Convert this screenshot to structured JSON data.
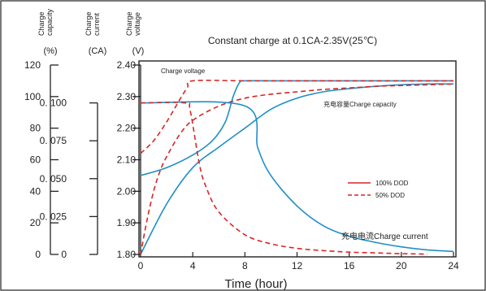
{
  "chart_data": {
    "type": "line",
    "title": "Constant charge at 0.1CA-2.35V(25℃)",
    "xlabel": "Time (hour)",
    "xlim": [
      0,
      24
    ],
    "x_ticks": [
      "0",
      "4",
      "8",
      "12",
      "16",
      "20",
      "24"
    ],
    "axes": [
      {
        "title": "Charge capacity",
        "unit": "(%)",
        "lim": [
          0,
          120
        ],
        "ticks": [
          "0",
          "20",
          "40",
          "60",
          "80",
          "100",
          "120"
        ]
      },
      {
        "title": "Charge current",
        "unit": "(CA)",
        "lim": [
          0,
          0.125
        ],
        "ticks": [
          "0",
          "0. 025",
          "0. 050",
          "0. 075",
          "0. 100"
        ]
      },
      {
        "title": "Charge voltage",
        "unit": "(V)",
        "lim": [
          1.8,
          2.4
        ],
        "ticks": [
          "1.80",
          "1.90",
          "2.00",
          "2.10",
          "2.20",
          "2.30",
          "2.40"
        ]
      }
    ],
    "annotations": {
      "voltage": "Charge voltage",
      "capacity": "充电容量Charge   capacity",
      "current": "充电电流Charge    current"
    },
    "legend": {
      "placement": "right",
      "entries": [
        {
          "label": "100% DOD",
          "style": "solid",
          "color": "#d62728"
        },
        {
          "label": "50% DOD",
          "style": "dashed",
          "color": "#d62728"
        }
      ]
    },
    "series": [
      {
        "quantity": "voltage",
        "dod": "100%",
        "axis": 2,
        "color": "#1f8fc6",
        "dash": false,
        "x": [
          0,
          2,
          4,
          5.5,
          6.5,
          7.1,
          7.6,
          8,
          10,
          14,
          18,
          22,
          24
        ],
        "y": [
          2.05,
          2.075,
          2.115,
          2.16,
          2.22,
          2.3,
          2.345,
          2.35,
          2.35,
          2.35,
          2.35,
          2.35,
          2.35
        ]
      },
      {
        "quantity": "voltage",
        "dod": "50%",
        "axis": 2,
        "color": "#d62728",
        "dash": true,
        "x": [
          0,
          1,
          2,
          3,
          3.6,
          4,
          8,
          12,
          16,
          20,
          24
        ],
        "y": [
          2.12,
          2.16,
          2.22,
          2.29,
          2.33,
          2.35,
          2.35,
          2.35,
          2.35,
          2.35,
          2.35
        ]
      },
      {
        "quantity": "capacity",
        "dod": "100%",
        "axis": 0,
        "color": "#1f8fc6",
        "dash": false,
        "x": [
          0,
          2,
          4,
          6,
          8,
          10,
          12,
          14,
          16,
          18,
          20,
          22,
          24
        ],
        "y": [
          0,
          32,
          55,
          68,
          80,
          92,
          99,
          103,
          105,
          106.5,
          107.5,
          108,
          108
        ]
      },
      {
        "quantity": "capacity",
        "dod": "50%",
        "axis": 0,
        "color": "#d62728",
        "dash": true,
        "x": [
          0,
          0.5,
          1,
          1.5,
          2,
          3,
          4,
          6,
          8,
          10,
          12,
          14,
          16,
          18,
          20,
          22,
          24
        ],
        "y": [
          0,
          22,
          40,
          53,
          62,
          76,
          85,
          94,
          99,
          101.5,
          103,
          104.5,
          105.5,
          106.5,
          107,
          107.5,
          108
        ]
      },
      {
        "quantity": "current",
        "dod": "100%",
        "axis": 1,
        "color": "#1f8fc6",
        "dash": false,
        "x": [
          0,
          8,
          9,
          10,
          12,
          14,
          16,
          18,
          20,
          22,
          24
        ],
        "y": [
          0.1,
          0.098,
          0.07,
          0.052,
          0.032,
          0.019,
          0.012,
          0.008,
          0.005,
          0.003,
          0.002
        ]
      },
      {
        "quantity": "current",
        "dod": "50%",
        "axis": 1,
        "color": "#d62728",
        "dash": true,
        "x": [
          0,
          3.4,
          3.8,
          4.5,
          5,
          6,
          8,
          10,
          12,
          14,
          16,
          18,
          20,
          22
        ],
        "y": [
          0.1,
          0.1,
          0.095,
          0.06,
          0.045,
          0.028,
          0.013,
          0.007,
          0.004,
          0.0025,
          0.0015,
          0.001,
          0.0005,
          0.0002
        ]
      }
    ]
  }
}
